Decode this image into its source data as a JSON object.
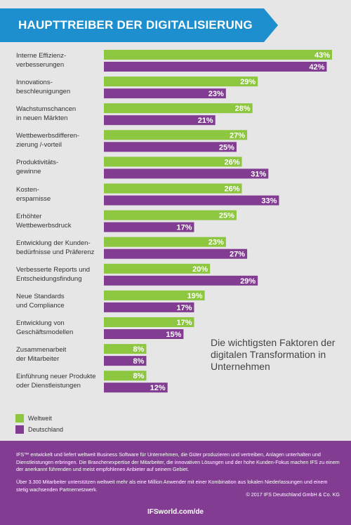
{
  "chart_data": {
    "type": "bar",
    "title": "HAUPTTREIBER DER DIGITALISIERUNG",
    "categories": [
      "Interne Effizienz-\nverbesserungen",
      "Innovations-\nbeschleunigungen",
      "Wachstumschancen\nin neuen Märkten",
      "Wettbewerbsdifferen-\nzierung /-vorteil",
      "Produktivitäts-\ngewinne",
      "Kosten-\nersparnisse",
      "Erhöhter\nWettbewerbsdruck",
      "Entwicklung der Kunden-\nbedürfnisse und Präferenz",
      "Verbesserte Reports und\nEntscheidungsfindung",
      "Neue Standards\nund Compliance",
      "Entwicklung von\nGeschäftsmodellen",
      "Zusammenarbeit\nder Mitarbeiter",
      "Einführung neuer Produkte\noder Dienstleistungen"
    ],
    "series": [
      {
        "name": "Weltweit",
        "color": "#8dc63f",
        "values": [
          43,
          29,
          28,
          27,
          26,
          26,
          25,
          23,
          20,
          19,
          17,
          8,
          8
        ]
      },
      {
        "name": "Deutschland",
        "color": "#823d92",
        "values": [
          42,
          23,
          21,
          25,
          31,
          33,
          17,
          27,
          29,
          17,
          15,
          8,
          12
        ]
      }
    ],
    "value_suffix": "%",
    "xlim": [
      0,
      43
    ],
    "legend_position": "bottom-left",
    "grid": false
  },
  "callout": "Die wichtigsten Faktoren der digitalen Transformation in Unternehmen",
  "colors": {
    "banner": "#1d8fcf",
    "footer": "#823d92",
    "panel": "#e6e6e6"
  },
  "footer": {
    "paragraph1": "IFS™ entwickelt und liefert weltweit Business Software für Unternehmen, die Güter produzieren und vertreiben, Anlagen unterhalten und Dienstleistungen erbringen. Die Branchenexpertise der Mitarbeiter, die innovativen Lösungen und der hohe Kunden-Fokus machen IFS zu einem der anerkannt führenden und meist empfohlenen Anbieter auf seinem Gebiet.",
    "paragraph2": "Über 3.300 Mitarbeiter unterstützen weltweit mehr als eine Million Anwender mit einer Kombination aus lokalen Niederlassungen und einem stetig wachsenden Partnernetzwerk.",
    "copyright": "© 2017 IFS Deutschland GmbH & Co. KG",
    "website": "IFSworld.com/de"
  }
}
